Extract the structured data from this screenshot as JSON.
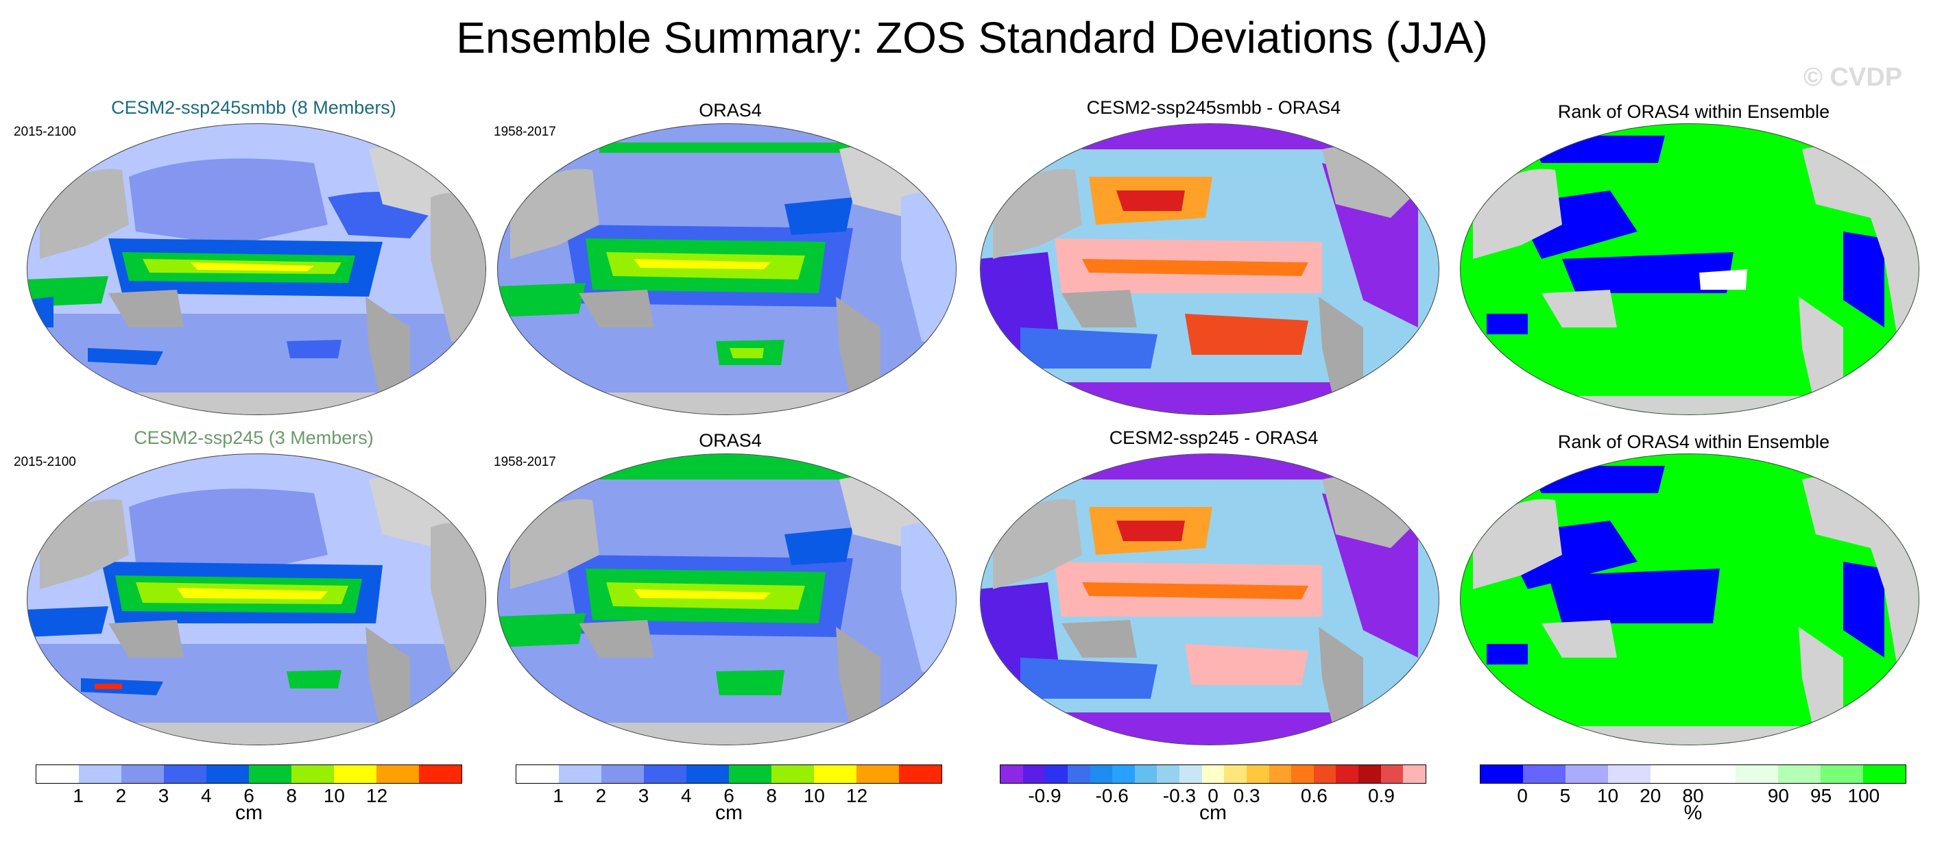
{
  "title": "Ensemble Summary: ZOS Standard Deviations (JJA)",
  "watermark": "© CVDP",
  "rows": [
    {
      "model_title": "CESM2-ssp245smbb (8 Members)",
      "model_title_color": "#1a6b80",
      "model_period": "2015-2100",
      "obs_title": "ORAS4",
      "obs_period": "1958-2017",
      "diff_title": "CESM2-ssp245smbb - ORAS4",
      "rank_title": "Rank of ORAS4 within Ensemble"
    },
    {
      "model_title": "CESM2-ssp245 (3 Members)",
      "model_title_color": "#6a9a6a",
      "model_period": "2015-2100",
      "obs_title": "ORAS4",
      "obs_period": "1958-2017",
      "diff_title": "CESM2-ssp245 - ORAS4",
      "rank_title": "Rank of ORAS4 within Ensemble"
    }
  ],
  "colorbars": {
    "stddev": {
      "unit": "cm",
      "colors": [
        "#ffffff",
        "#b4c8ff",
        "#8296f0",
        "#3c64f0",
        "#0a5ae6",
        "#00c832",
        "#96f000",
        "#ffff00",
        "#ffa000",
        "#ff2800"
      ],
      "ticks": [
        "1",
        "2",
        "3",
        "4",
        "6",
        "8",
        "10",
        "12"
      ]
    },
    "diff": {
      "unit": "cm",
      "colors": [
        "#8c28e6",
        "#5a1ee6",
        "#2d32f0",
        "#3c6ef0",
        "#1e8cf0",
        "#28a0ff",
        "#64bef0",
        "#96d2f0",
        "#c8e6f5",
        "#ffffc8",
        "#ffe678",
        "#ffc83c",
        "#ffa028",
        "#ff7814",
        "#f04b1e",
        "#dc1e1e",
        "#b40f0f",
        "#e64b4b",
        "#ffb4b4"
      ],
      "ticks": [
        "-0.9",
        "-0.6",
        "-0.3",
        "0",
        "0.3",
        "0.6",
        "0.9"
      ]
    },
    "rank": {
      "unit": "%",
      "colors": [
        "#0000ff",
        "#6464ff",
        "#aaaaff",
        "#dcdcff",
        "#ffffff",
        "#ffffff",
        "#e6ffe6",
        "#b4ffb4",
        "#78ff78",
        "#00ff00"
      ],
      "ticks": [
        "0",
        "5",
        "10",
        "20",
        "80",
        "90",
        "95",
        "100"
      ]
    }
  }
}
